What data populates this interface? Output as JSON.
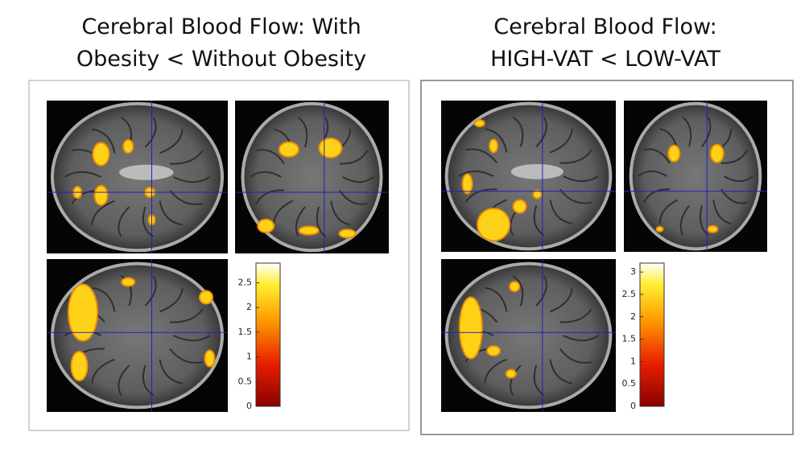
{
  "panels": [
    {
      "title_lines": [
        "Cerebral Blood Flow: With",
        "Obesity < Without Obesity"
      ],
      "colorbar": {
        "ylim": [
          0,
          2.9
        ],
        "yticks": [
          0,
          0.5,
          1,
          1.5,
          2,
          2.5
        ]
      }
    },
    {
      "title_lines": [
        "Cerebral Blood Flow:",
        "HIGH-VAT < LOW-VAT"
      ],
      "colorbar": {
        "ylim": [
          0,
          3.2
        ],
        "yticks": [
          0,
          0.5,
          1,
          1.5,
          2,
          2.5,
          3
        ]
      }
    }
  ]
}
